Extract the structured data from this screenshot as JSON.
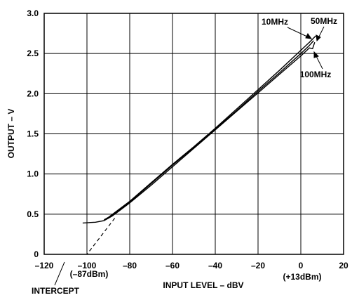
{
  "chart_data": {
    "type": "line",
    "title": "",
    "xlabel": "INPUT LEVEL – dBV",
    "ylabel": "OUTPUT – V",
    "xlim": [
      -120,
      20
    ],
    "ylim": [
      0,
      3.0
    ],
    "x_ticks": [
      -120,
      -100,
      -80,
      -60,
      -40,
      -20,
      0,
      20
    ],
    "x_tick_labels": [
      "–120",
      "–100",
      "–80",
      "–60",
      "–40",
      "–20",
      "0",
      "20"
    ],
    "y_ticks": [
      0,
      0.5,
      1.0,
      1.5,
      2.0,
      2.5,
      3.0
    ],
    "y_tick_labels": [
      "0",
      "0.5",
      "1.0",
      "1.5",
      "2.0",
      "2.5",
      "3.0"
    ],
    "grid": true,
    "series": [
      {
        "name": "10MHz",
        "x": [
          -102,
          -96,
          -92,
          -90,
          -88,
          -85,
          -80,
          -70,
          -60,
          -50,
          -40,
          -30,
          -20,
          -10,
          0,
          4,
          6
        ],
        "y": [
          0.39,
          0.4,
          0.42,
          0.45,
          0.49,
          0.55,
          0.65,
          0.88,
          1.11,
          1.33,
          1.56,
          1.79,
          2.03,
          2.26,
          2.5,
          2.6,
          2.66
        ]
      },
      {
        "name": "50MHz",
        "x": [
          -92,
          -90,
          -88,
          -85,
          -80,
          -70,
          -60,
          -50,
          -40,
          -30,
          -20,
          -10,
          0,
          4,
          7
        ],
        "y": [
          0.43,
          0.46,
          0.5,
          0.56,
          0.66,
          0.89,
          1.12,
          1.34,
          1.57,
          1.81,
          2.05,
          2.29,
          2.54,
          2.64,
          2.72
        ]
      },
      {
        "name": "100MHz",
        "x": [
          -92,
          -90,
          -88,
          -85,
          -80,
          -70,
          -60,
          -50,
          -40,
          -30,
          -20,
          -10,
          0,
          4,
          5.5,
          6.5
        ],
        "y": [
          0.43,
          0.45,
          0.48,
          0.54,
          0.64,
          0.86,
          1.09,
          1.32,
          1.55,
          1.78,
          2.01,
          2.24,
          2.47,
          2.57,
          2.56,
          2.64
        ]
      }
    ],
    "intercept_line": {
      "style": "dashed",
      "x": [
        -87,
        -100
      ],
      "y": [
        0.45,
        0
      ]
    },
    "annotations": {
      "intercept": "INTERCEPT",
      "low_dbm": "(–87dBm)",
      "high_dbm": "(+13dBm)"
    }
  }
}
